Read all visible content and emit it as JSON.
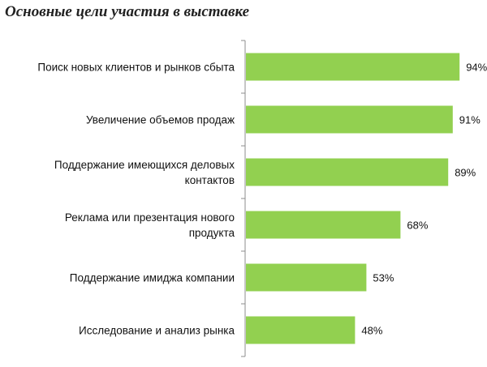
{
  "title": "Основные цели участия в выставке",
  "chart_data": {
    "type": "bar",
    "orientation": "horizontal",
    "categories": [
      [
        "Поиск новых клиентов и рынков сбыта"
      ],
      [
        "Увеличение объемов продаж"
      ],
      [
        "Поддержание имеющихся деловых",
        "контактов"
      ],
      [
        "Реклама или презентация нового",
        "продукта"
      ],
      [
        "Поддержание имиджа компании"
      ],
      [
        "Исследование и анализ рынка"
      ]
    ],
    "values": [
      94,
      91,
      89,
      68,
      53,
      48
    ],
    "value_labels": [
      "94%",
      "91%",
      "89%",
      "68%",
      "53%",
      "48%"
    ],
    "xlim": [
      0,
      100
    ],
    "grid": false,
    "colors": {
      "bar": "#92d050",
      "axis": "#8c8c8c"
    }
  }
}
